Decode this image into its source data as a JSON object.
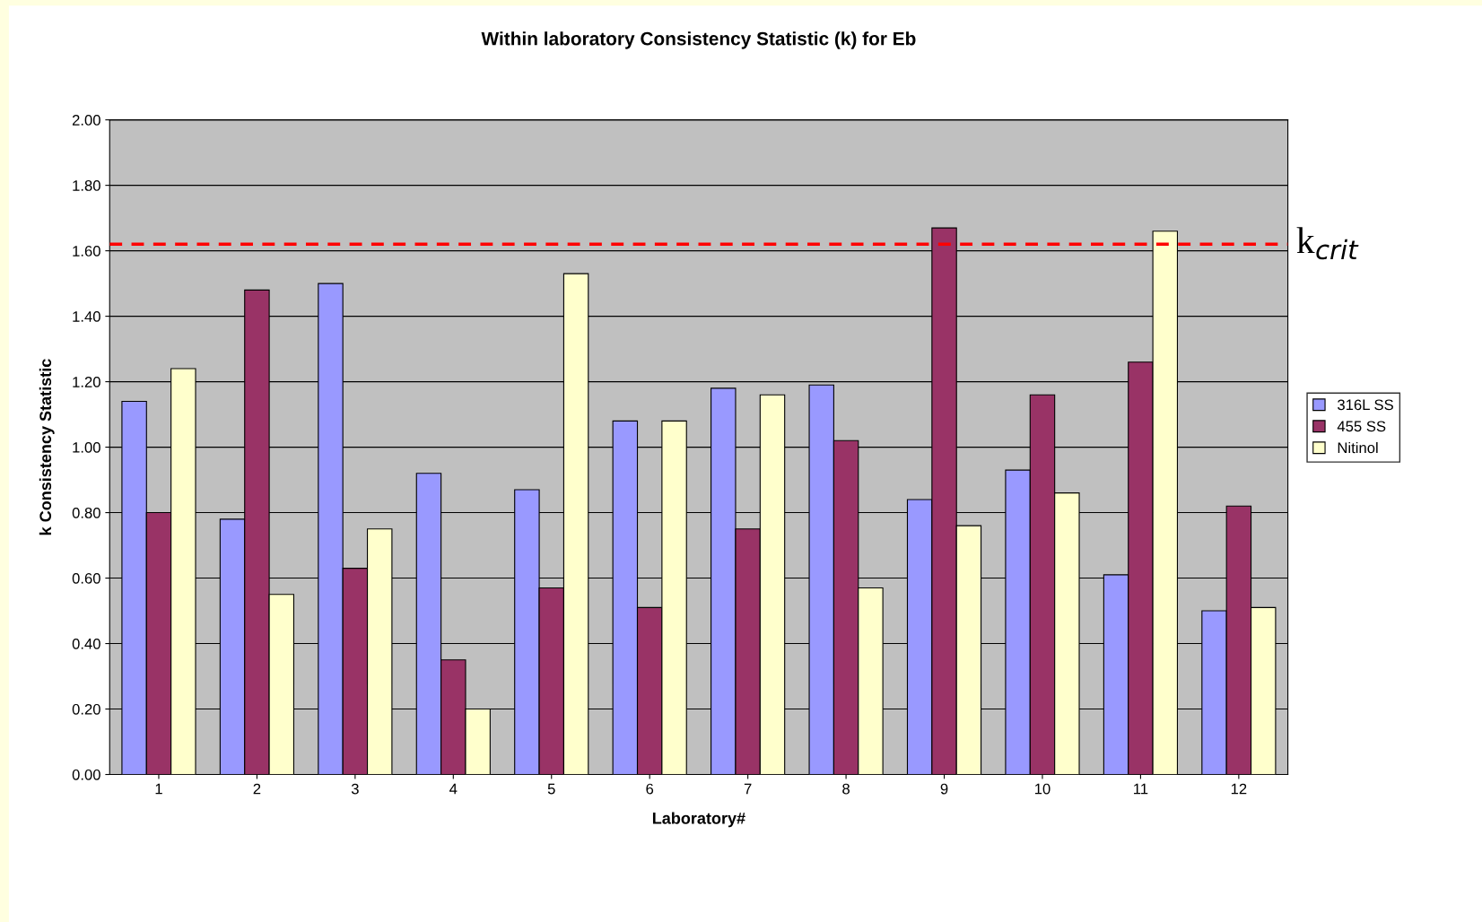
{
  "chart_data": {
    "type": "bar",
    "title": "Within laboratory Consistency Statistic (k) for Eb",
    "xlabel": "Laboratory#",
    "ylabel": "k Consistency Statistic",
    "categories": [
      "1",
      "2",
      "3",
      "4",
      "5",
      "6",
      "7",
      "8",
      "9",
      "10",
      "11",
      "12"
    ],
    "series": [
      {
        "name": "316L SS",
        "color": "#9999ff",
        "values": [
          1.14,
          0.78,
          1.5,
          0.92,
          0.87,
          1.08,
          1.18,
          1.19,
          0.84,
          0.93,
          0.61,
          0.5
        ]
      },
      {
        "name": "455 SS",
        "color": "#993366",
        "values": [
          0.8,
          1.48,
          0.63,
          0.35,
          0.57,
          0.51,
          0.75,
          1.02,
          1.67,
          1.16,
          1.26,
          0.82
        ]
      },
      {
        "name": "Nitinol",
        "color": "#ffffcc",
        "values": [
          1.24,
          0.55,
          0.75,
          0.2,
          1.53,
          1.08,
          1.16,
          0.57,
          0.76,
          0.86,
          1.66,
          0.51
        ]
      }
    ],
    "ylim": [
      0,
      2
    ],
    "yticks": [
      {
        "value": 0,
        "label": "0.00"
      },
      {
        "value": 0.2,
        "label": "0.20"
      },
      {
        "value": 0.4,
        "label": "0.40"
      },
      {
        "value": 0.6,
        "label": "0.60"
      },
      {
        "value": 0.8,
        "label": "0.80"
      },
      {
        "value": 1.0,
        "label": "1.00"
      },
      {
        "value": 1.2,
        "label": "1.20"
      },
      {
        "value": 1.4,
        "label": "1.40"
      },
      {
        "value": 1.6,
        "label": "1.60"
      },
      {
        "value": 1.8,
        "label": "1.80"
      },
      {
        "value": 2.0,
        "label": "2.00"
      }
    ],
    "grid": "y",
    "legend": "right",
    "ref_lines": [
      {
        "axis": "y",
        "value": 1.62,
        "label": "k$_{crit}$",
        "color": "#ff0000",
        "line_style": "dashed"
      }
    ]
  }
}
